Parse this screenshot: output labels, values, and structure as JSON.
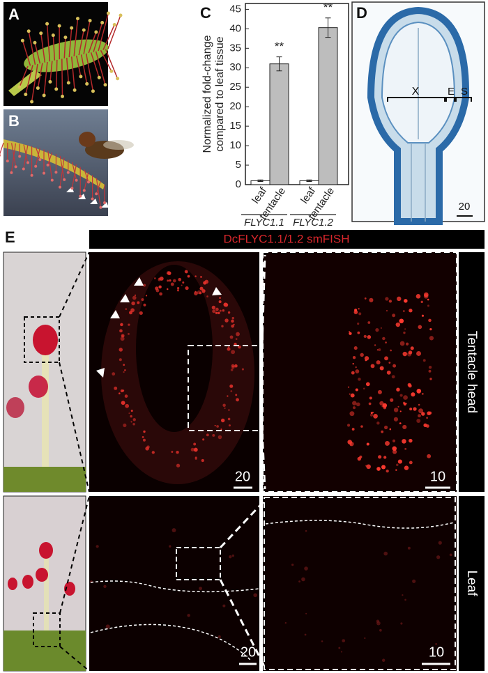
{
  "panel_labels": [
    "A",
    "B",
    "C",
    "D",
    "E"
  ],
  "chart_data": {
    "type": "bar",
    "ylabel": [
      "Normalized fold-change",
      "compared to leaf tissue"
    ],
    "categories": [
      "leaf",
      "tentacle",
      "leaf",
      "tentacle"
    ],
    "groups": [
      "FLYC1.1",
      "FLYC1.2"
    ],
    "values": [
      1,
      31,
      1,
      40.3
    ],
    "errors": [
      0.2,
      1.8,
      0.2,
      2.5
    ],
    "significance": [
      null,
      "**",
      null,
      "**"
    ],
    "colors": [
      "#ffffff",
      "#bdbdbd",
      "#ffffff",
      "#bdbdbd"
    ],
    "ylim": [
      0,
      46.5
    ],
    "yticks": [
      0,
      5,
      10,
      15,
      20,
      25,
      30,
      35,
      40,
      45
    ]
  },
  "micrograph_d": {
    "labels": [
      "X",
      "E",
      "S"
    ],
    "scale_bar": "20"
  },
  "panel_e": {
    "title": "DcFLYC1.1/1.2 smFISH",
    "rows": [
      {
        "label": "Tentacle head",
        "scale_bars": [
          "20",
          "10"
        ]
      },
      {
        "label": "Leaf",
        "scale_bars": [
          "20",
          "10"
        ]
      }
    ]
  }
}
